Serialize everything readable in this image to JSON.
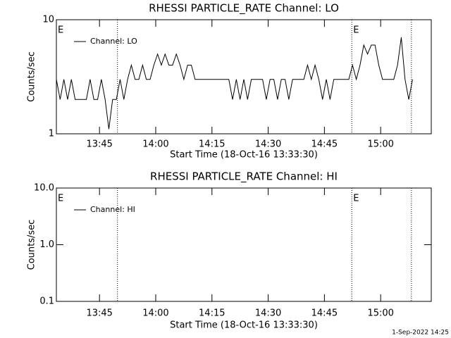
{
  "chart_data": [
    {
      "type": "line",
      "title": "RHESSI PARTICLE_RATE Channel: LO",
      "xlabel": "Start Time (18-Oct-16 13:33:30)",
      "ylabel": "Counts/sec",
      "log_y": true,
      "legend": "upper left",
      "color": "#000000",
      "xlim": [
        0,
        100
      ],
      "xticks": [
        {
          "value": 11.5,
          "label": "13:45"
        },
        {
          "value": 26.5,
          "label": "14:00"
        },
        {
          "value": 41.5,
          "label": "14:15"
        },
        {
          "value": 56.5,
          "label": "14:30"
        },
        {
          "value": 71.5,
          "label": "14:45"
        },
        {
          "value": 86.5,
          "label": "15:00"
        }
      ],
      "ylim": [
        1,
        10
      ],
      "yticks": [
        1,
        10
      ],
      "event_lines": [
        16.3,
        78.8,
        94.7
      ],
      "annotations": [
        {
          "text": "E",
          "x": 0
        },
        {
          "text": "E",
          "x": 78.8
        }
      ],
      "series": [
        {
          "name": "Channel: LO",
          "color": "#000000",
          "x": [
            0,
            1,
            2,
            3,
            4,
            5,
            6,
            7,
            8,
            9,
            10,
            11,
            12,
            13,
            14,
            15,
            16,
            17,
            18,
            19,
            20,
            21,
            22,
            23,
            24,
            25,
            26,
            27,
            28,
            29,
            30,
            31,
            32,
            33,
            34,
            35,
            36,
            37,
            38,
            39,
            40,
            41,
            42,
            43,
            44,
            45,
            46,
            47,
            48,
            49,
            50,
            51,
            52,
            53,
            54,
            55,
            56,
            57,
            58,
            59,
            60,
            61,
            62,
            63,
            64,
            65,
            66,
            67,
            68,
            69,
            70,
            71,
            72,
            73,
            74,
            75,
            76,
            77,
            78,
            79,
            80,
            81,
            82,
            83,
            84,
            85,
            86,
            87,
            88,
            89,
            90,
            91,
            92,
            93,
            94,
            95
          ],
          "values": [
            3,
            2,
            3,
            2,
            3,
            2,
            2,
            2,
            2,
            3,
            2,
            2,
            3,
            2,
            1.1,
            2,
            2,
            3,
            2,
            3,
            4,
            3,
            3,
            4,
            3,
            3,
            4,
            5,
            4,
            5,
            4,
            4,
            5,
            4,
            3,
            4,
            4,
            3,
            3,
            3,
            3,
            3,
            3,
            3,
            3,
            3,
            3,
            2,
            3,
            2,
            3,
            2,
            3,
            3,
            3,
            3,
            2,
            3,
            3,
            2,
            3,
            3,
            2,
            3,
            3,
            3,
            3,
            4,
            3,
            4,
            3,
            2,
            3,
            2,
            3,
            3,
            3,
            3,
            3,
            4,
            3,
            4,
            6,
            5,
            6,
            6,
            4,
            3,
            3,
            3,
            3,
            4,
            7,
            3,
            2,
            3
          ]
        }
      ]
    },
    {
      "type": "line",
      "title": "RHESSI PARTICLE_RATE Channel: HI",
      "xlabel": "Start Time (18-Oct-16 13:33:30)",
      "ylabel": "Counts/sec",
      "log_y": true,
      "legend": "upper left",
      "color": "#000000",
      "xlim": [
        0,
        100
      ],
      "xticks": [
        {
          "value": 11.5,
          "label": "13:45"
        },
        {
          "value": 26.5,
          "label": "14:00"
        },
        {
          "value": 41.5,
          "label": "14:15"
        },
        {
          "value": 56.5,
          "label": "14:30"
        },
        {
          "value": 71.5,
          "label": "14:45"
        },
        {
          "value": 86.5,
          "label": "15:00"
        }
      ],
      "ylim": [
        0.1,
        10
      ],
      "yticks": [
        0.1,
        {
          "value": 1,
          "label": "1.0"
        },
        {
          "value": 10,
          "label": "10.0"
        }
      ],
      "event_lines": [
        16.3,
        78.8,
        94.7
      ],
      "annotations": [
        {
          "text": "E",
          "x": 0
        },
        {
          "text": "E",
          "x": 78.8
        }
      ],
      "series": [
        {
          "name": "Channel: HI",
          "color": "#000000",
          "x": [],
          "values": []
        }
      ]
    }
  ],
  "timestamp": "1-Sep-2022 14:25"
}
